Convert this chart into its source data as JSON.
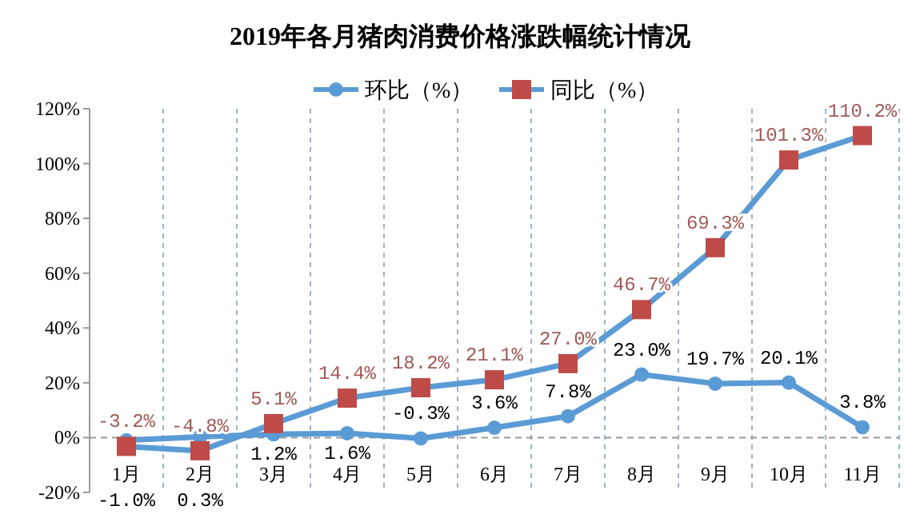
{
  "chart_data": {
    "type": "line",
    "title": "2019年各月猪肉消费价格涨跌幅统计情况",
    "categories": [
      "1月",
      "2月",
      "3月",
      "4月",
      "5月",
      "6月",
      "7月",
      "8月",
      "9月",
      "10月",
      "11月"
    ],
    "series": [
      {
        "name": "环比（%）",
        "color": "#5b9bd5",
        "marker": "circle",
        "values": [
          -1.0,
          0.3,
          1.2,
          1.6,
          -0.3,
          3.6,
          7.8,
          23.0,
          19.7,
          20.1,
          3.8
        ],
        "value_labels": [
          "-1.0%",
          "0.3%",
          "1.2%",
          "1.6%",
          "-0.3%",
          "3.6%",
          "7.8%",
          "23.0%",
          "19.7%",
          "20.1%",
          "3.8%"
        ]
      },
      {
        "name": "同比（%）",
        "color": "#5b9bd5",
        "colors": [
          "#be4b48",
          "#be4b48",
          "#be4b48",
          "#be4b48",
          "#be4b48",
          "#be4b48",
          "#be4b48",
          "#be4b48",
          "#be4b48",
          "#be4b48",
          "#be4b48"
        ],
        "marker": "square",
        "values": [
          -3.2,
          -4.8,
          5.1,
          14.4,
          18.2,
          21.1,
          27.0,
          46.7,
          69.3,
          101.3,
          110.2
        ],
        "value_labels": [
          "-3.2%",
          "-4.8%",
          "5.1%",
          "14.4%",
          "18.2%",
          "21.1%",
          "27.0%",
          "46.7%",
          "69.3%",
          "101.3%",
          "110.2%"
        ]
      }
    ],
    "ylim": [
      -20,
      120
    ],
    "yticks": [
      {
        "value": -20,
        "label": "-20%"
      },
      {
        "value": 0,
        "label": "0%"
      },
      {
        "value": 20,
        "label": "20%"
      },
      {
        "value": 40,
        "label": "40%"
      },
      {
        "value": 60,
        "label": "60%"
      },
      {
        "value": 80,
        "label": "80%"
      },
      {
        "value": 100,
        "label": "100%"
      },
      {
        "value": 120,
        "label": "120%"
      }
    ],
    "ref_lines": [
      {
        "axis": "y",
        "value": 0,
        "color": "#999999",
        "line_style": "dashed"
      }
    ],
    "grid": "x",
    "legend": "top",
    "line_style": "solid"
  }
}
